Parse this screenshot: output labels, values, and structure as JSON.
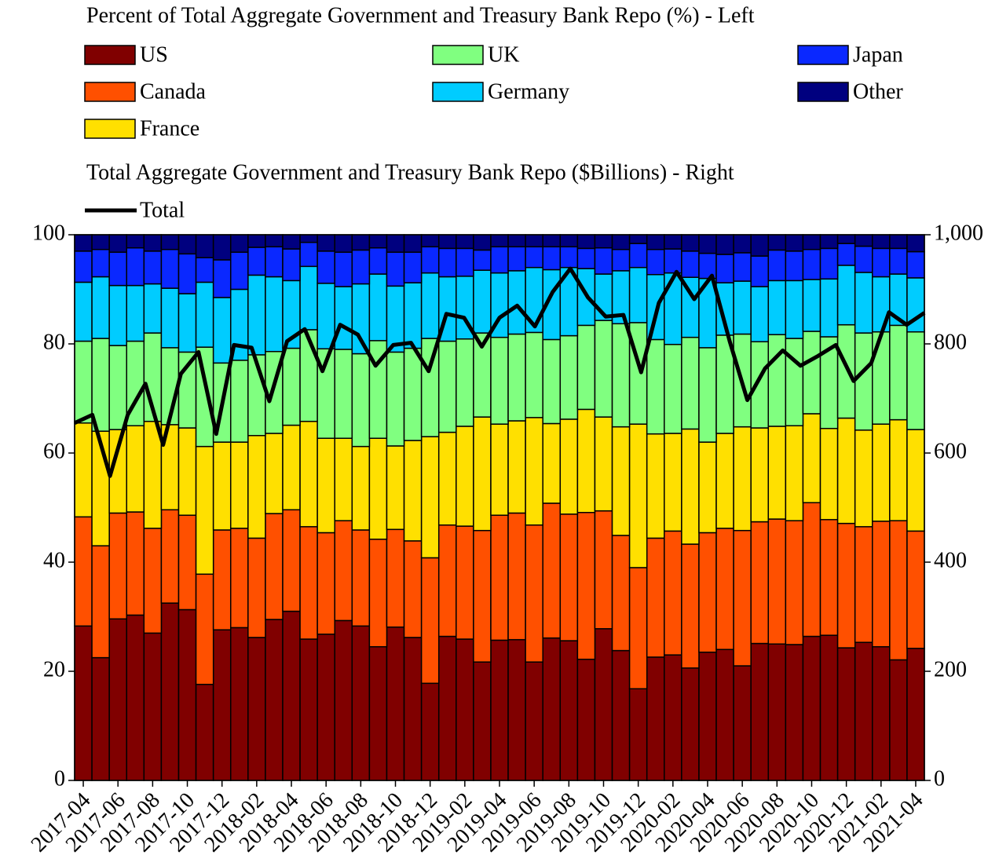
{
  "chart_data": {
    "type": "bar",
    "stacked": true,
    "title": "Percent of Total Aggregate Government and Treasury Bank Repo (%) - Left",
    "y2_title": "Total Aggregate Government and Treasury Bank Repo ($Billions) - Right",
    "categories": [
      "2017-04",
      null,
      "2017-06",
      null,
      "2017-08",
      null,
      "2017-10",
      null,
      "2017-12",
      null,
      "2018-02",
      null,
      "2018-04",
      null,
      "2018-06",
      null,
      "2018-08",
      null,
      "2018-10",
      null,
      "2018-12",
      null,
      "2019-02",
      null,
      "2019-04",
      null,
      "2019-06",
      null,
      "2019-08",
      null,
      "2019-10",
      null,
      "2019-12",
      null,
      "2020-02",
      null,
      "2020-04",
      null,
      "2020-06",
      null,
      "2020-08",
      null,
      "2020-10",
      null,
      "2020-12",
      null,
      "2021-02",
      null,
      "2021-04"
    ],
    "ylim": [
      0,
      100
    ],
    "yticks": [
      0,
      20,
      40,
      60,
      80,
      100
    ],
    "y2lim": [
      0,
      1000
    ],
    "y2ticks": [
      0,
      200,
      400,
      600,
      800,
      {
        "value": 1000,
        "label": "1,000"
      }
    ],
    "series": [
      {
        "name": "US",
        "color": "#800000",
        "values": [
          28.3,
          22.5,
          29.6,
          30.3,
          27.0,
          32.5,
          31.3,
          17.6,
          27.6,
          28.0,
          26.2,
          29.5,
          31.0,
          25.9,
          26.8,
          29.3,
          28.3,
          24.5,
          28.1,
          26.2,
          17.8,
          26.4,
          25.9,
          21.7,
          25.7,
          25.8,
          21.7,
          26.1,
          25.6,
          22.2,
          27.8,
          23.8,
          16.8,
          22.6,
          23.0,
          20.6,
          23.5,
          24.0,
          21.0,
          25.1,
          25.0,
          24.9,
          26.4,
          26.6,
          24.3,
          25.3,
          24.5,
          22.1,
          24.2
        ]
      },
      {
        "name": "Canada",
        "color": "#ff5000",
        "values": [
          20.0,
          20.5,
          19.4,
          18.9,
          19.2,
          17.1,
          17.3,
          20.2,
          18.3,
          18.2,
          18.2,
          19.4,
          18.6,
          20.6,
          18.6,
          18.3,
          17.6,
          19.7,
          17.9,
          17.7,
          23.0,
          20.4,
          20.7,
          24.1,
          22.9,
          23.2,
          25.1,
          24.7,
          23.2,
          26.9,
          21.6,
          21.1,
          22.2,
          21.8,
          22.7,
          22.7,
          21.9,
          22.2,
          24.8,
          22.3,
          22.9,
          22.7,
          24.5,
          21.2,
          22.8,
          21.2,
          23.0,
          25.5,
          21.5
        ]
      },
      {
        "name": "France",
        "color": "#ffe000",
        "values": [
          17.2,
          21.0,
          15.3,
          15.8,
          19.6,
          15.6,
          16.0,
          23.4,
          16.1,
          15.8,
          18.8,
          14.7,
          15.5,
          19.3,
          17.3,
          15.1,
          15.3,
          18.5,
          15.3,
          18.4,
          22.2,
          17.0,
          18.3,
          20.8,
          16.7,
          16.9,
          19.7,
          14.6,
          17.4,
          18.9,
          17.2,
          19.9,
          26.3,
          19.1,
          17.9,
          21.1,
          16.6,
          17.4,
          19.0,
          17.2,
          17.0,
          17.4,
          16.3,
          16.7,
          19.3,
          17.7,
          17.8,
          18.5,
          18.6
        ]
      },
      {
        "name": "UK",
        "color": "#80ff80",
        "values": [
          15.0,
          17.0,
          15.4,
          15.5,
          16.2,
          14.1,
          13.9,
          18.2,
          14.5,
          15.0,
          14.8,
          15.0,
          14.1,
          16.8,
          16.4,
          16.3,
          17.0,
          17.9,
          17.2,
          16.9,
          18.0,
          16.7,
          16.0,
          15.4,
          15.9,
          15.9,
          15.6,
          15.4,
          15.3,
          15.4,
          17.7,
          18.9,
          18.6,
          17.3,
          16.3,
          16.8,
          17.3,
          18.0,
          17.0,
          15.8,
          16.8,
          16.0,
          15.1,
          16.8,
          17.1,
          17.8,
          16.9,
          17.3,
          17.9
        ]
      },
      {
        "name": "Germany",
        "color": "#00ccff",
        "values": [
          10.8,
          11.3,
          11.0,
          10.2,
          9.0,
          10.9,
          10.7,
          11.9,
          12.0,
          13.0,
          14.6,
          13.7,
          12.4,
          11.6,
          12.0,
          11.5,
          12.8,
          12.2,
          12.1,
          12.0,
          12.0,
          11.8,
          11.5,
          11.5,
          11.8,
          11.6,
          11.9,
          12.8,
          12.5,
          10.4,
          8.5,
          9.7,
          10.1,
          11.9,
          13.1,
          11.0,
          12.7,
          9.6,
          9.7,
          10.1,
          9.9,
          10.6,
          9.5,
          10.6,
          10.9,
          11.1,
          10.1,
          9.4,
          9.9
        ]
      },
      {
        "name": "Japan",
        "color": "#0a28ff",
        "values": [
          5.7,
          5.0,
          6.1,
          6.9,
          6.0,
          7.1,
          7.3,
          4.5,
          6.9,
          6.8,
          5.1,
          5.5,
          5.8,
          4.4,
          5.9,
          6.3,
          6.2,
          4.8,
          6.2,
          5.6,
          4.8,
          5.2,
          5.1,
          3.7,
          4.8,
          4.4,
          3.8,
          4.2,
          3.8,
          3.7,
          4.8,
          3.9,
          4.4,
          4.6,
          4.4,
          4.8,
          4.6,
          5.2,
          5.2,
          5.6,
          5.6,
          5.4,
          5.5,
          5.6,
          4.0,
          4.8,
          5.2,
          4.7,
          4.8
        ]
      },
      {
        "name": "Other",
        "color": "#00007f",
        "values": [
          3.0,
          2.7,
          3.2,
          2.4,
          3.0,
          2.7,
          3.5,
          4.2,
          4.6,
          3.2,
          2.3,
          2.2,
          2.6,
          1.4,
          3.0,
          3.2,
          2.8,
          2.4,
          3.2,
          3.2,
          2.2,
          2.5,
          2.5,
          2.8,
          2.2,
          2.2,
          2.2,
          2.2,
          2.2,
          2.5,
          2.4,
          2.7,
          1.6,
          2.7,
          2.6,
          3.0,
          3.4,
          3.6,
          3.3,
          3.9,
          2.8,
          3.0,
          2.7,
          2.5,
          1.6,
          2.1,
          2.5,
          2.5,
          3.1
        ]
      },
      {
        "name": "Total",
        "color": "#000000",
        "type": "line",
        "axis": "y2",
        "values": [
          655,
          670,
          558,
          670,
          727,
          615,
          745,
          785,
          635,
          798,
          793,
          695,
          805,
          827,
          750,
          835,
          817,
          760,
          798,
          802,
          750,
          855,
          848,
          795,
          848,
          870,
          832,
          895,
          938,
          885,
          850,
          853,
          748,
          875,
          932,
          882,
          925,
          805,
          697,
          755,
          788,
          760,
          778,
          798,
          732,
          765,
          858,
          835,
          857
        ]
      }
    ]
  }
}
